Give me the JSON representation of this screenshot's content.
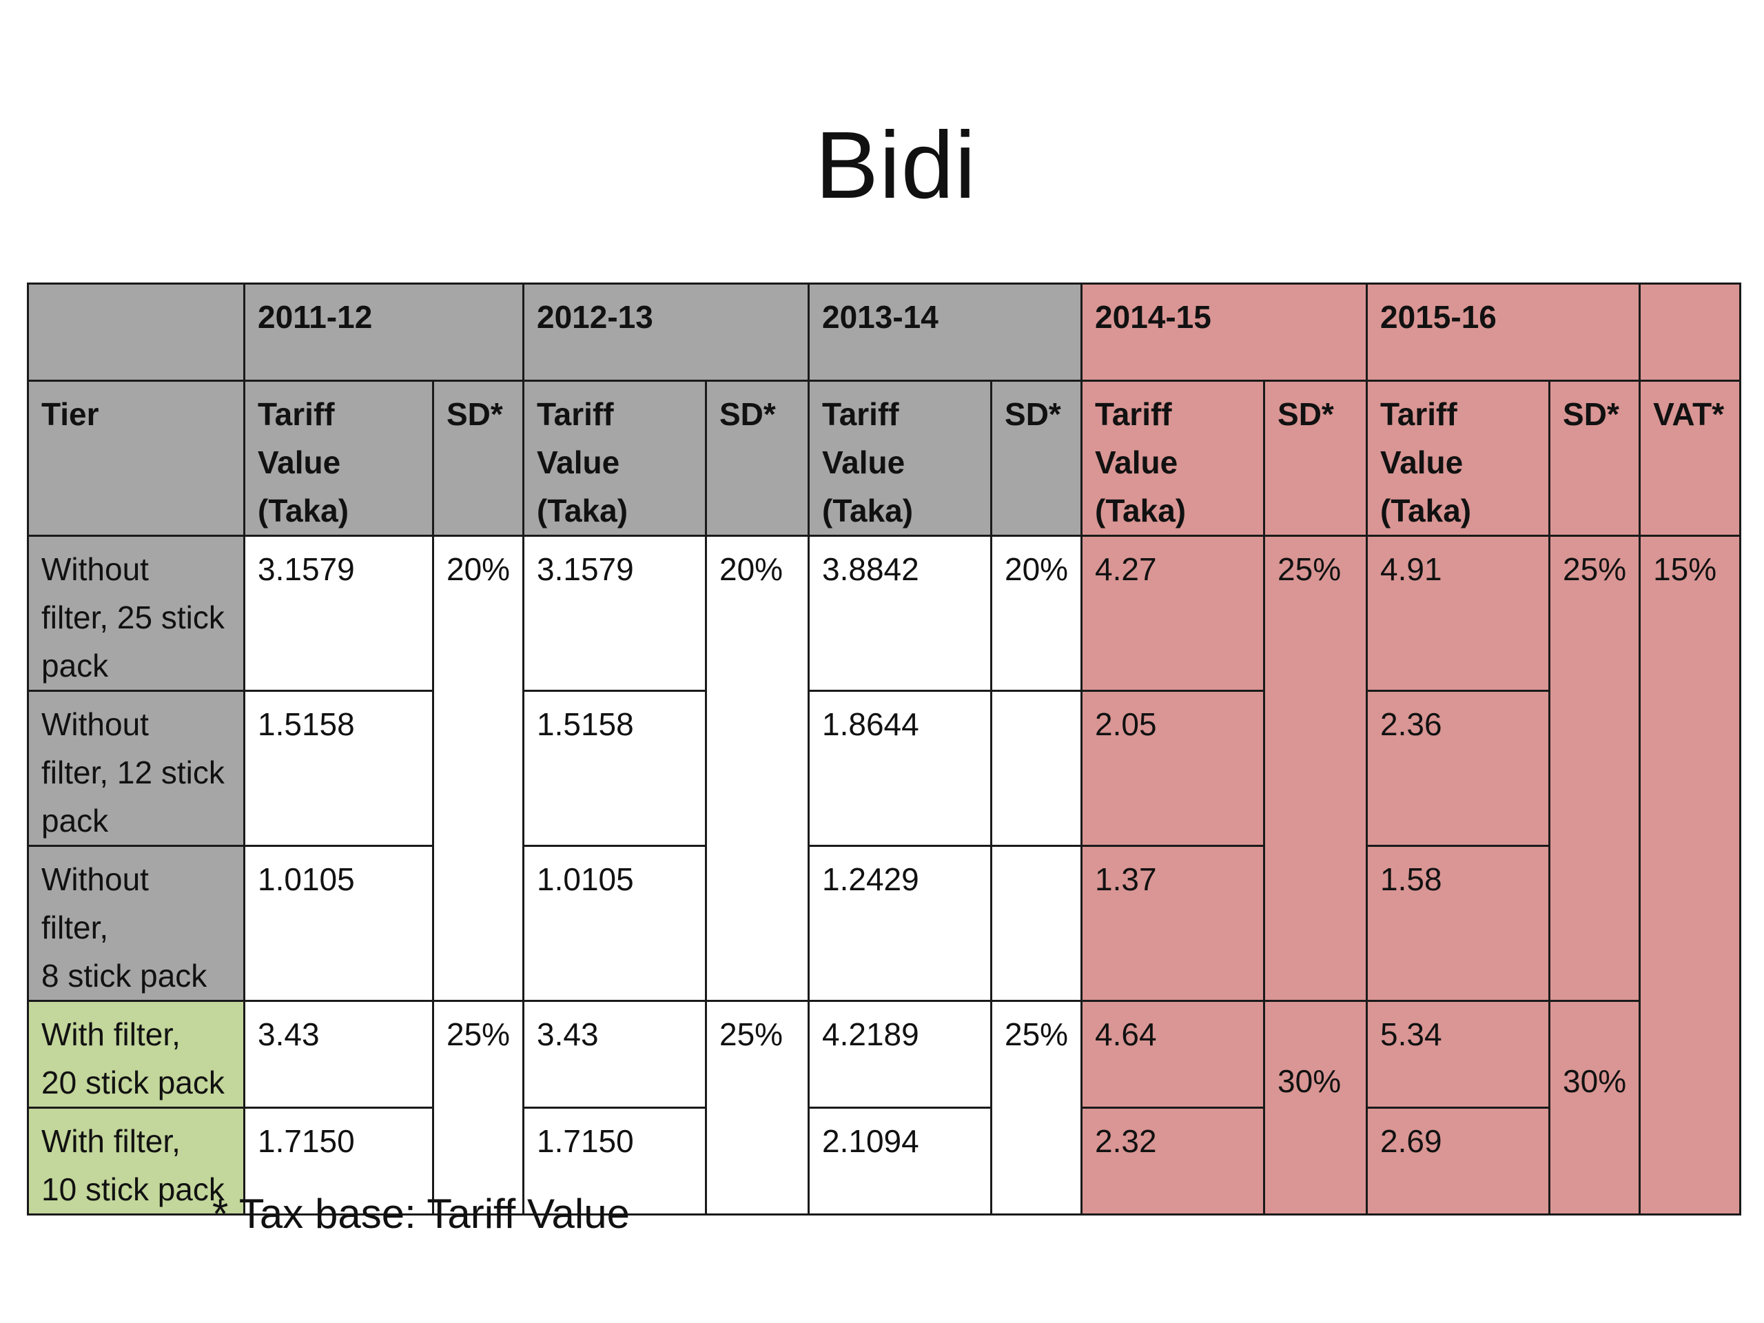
{
  "title": "Bidi",
  "table": {
    "years": [
      "2011-12",
      "2012-13",
      "2013-14",
      "2014-15",
      "2015-16"
    ],
    "tier_header": "Tier",
    "tariff_header": [
      "Tariff",
      "Value",
      "(Taka)"
    ],
    "sd_header": "SD*",
    "vat_header": "VAT*",
    "rows": [
      {
        "tier": [
          "Without",
          "filter, 25 stick",
          "pack"
        ],
        "tv_2011": "3.1579",
        "tv_2012": "3.1579",
        "tv_2013": "3.8842",
        "sd_2013": "20%",
        "tv_2014": "4.27",
        "tv_2015": "4.91"
      },
      {
        "tier": [
          "Without",
          "filter, 12 stick",
          "pack"
        ],
        "tv_2011": "1.5158",
        "tv_2012": "1.5158",
        "tv_2013": "1.8644",
        "sd_2013": "",
        "tv_2014": "2.05",
        "tv_2015": "2.36"
      },
      {
        "tier": [
          "Without",
          "filter,",
          "8 stick pack"
        ],
        "tv_2011": "1.0105",
        "tv_2012": "1.0105",
        "tv_2013": "1.2429",
        "sd_2013": "",
        "tv_2014": "1.37",
        "tv_2015": "1.58"
      },
      {
        "tier": [
          "With filter,",
          "20 stick pack"
        ],
        "tv_2011": "3.43",
        "tv_2012": "3.43",
        "tv_2013": "4.2189",
        "tv_2014": "4.64",
        "tv_2015": "5.34"
      },
      {
        "tier": [
          "With filter,",
          "10 stick pack"
        ],
        "tv_2011": "1.7150",
        "tv_2012": "1.7150",
        "tv_2013": "2.1094",
        "tv_2014": "2.32",
        "tv_2015": "2.69"
      }
    ],
    "sd_without_filter_2011": "20%",
    "sd_without_filter_2012": "20%",
    "sd_without_filter_2014": "25%",
    "sd_without_filter_2015": "25%",
    "sd_with_filter_2011": "25%",
    "sd_with_filter_2012": "25%",
    "sd_with_filter_2013": "25%",
    "sd_with_filter_2014": "30%",
    "sd_with_filter_2015": "30%",
    "vat_value": "15%"
  },
  "footnote": "* Tax base: Tariff Value",
  "colors": {
    "header_grey": "#a6a6a6",
    "recent_years_pink": "#d99694",
    "with_filter_green": "#c3d69b"
  }
}
